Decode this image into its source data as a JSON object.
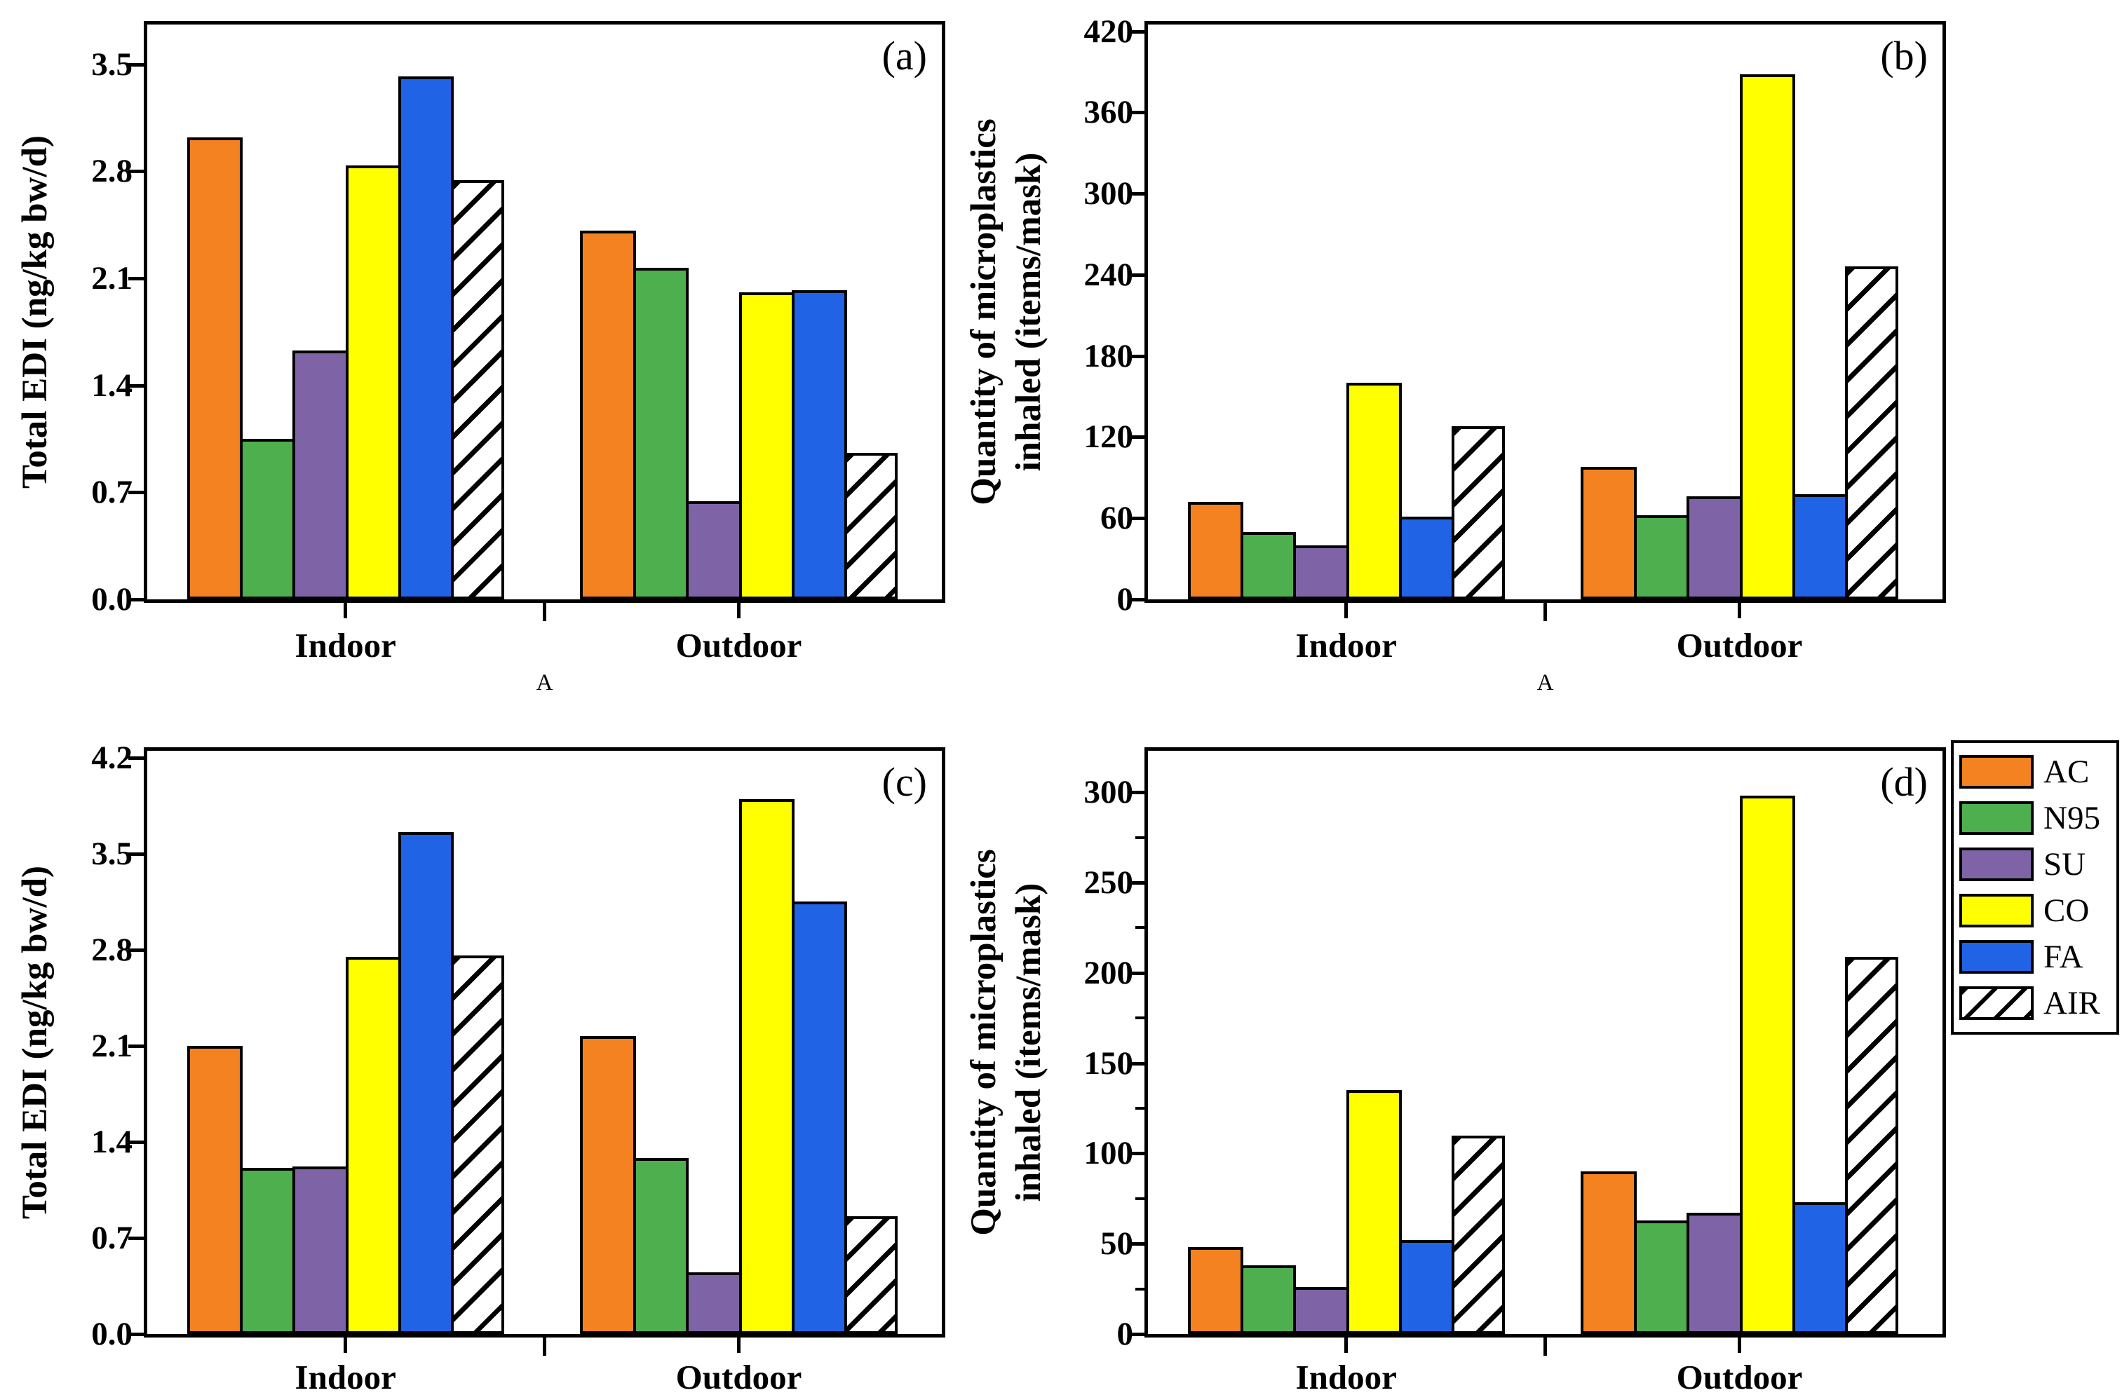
{
  "figure_background": "#FFFFFF",
  "colors": {
    "AC": "#F58220",
    "N95": "#4DAF4E",
    "SU": "#7E64A6",
    "CO": "#FFFF00",
    "FA": "#2063E5",
    "AIR": "#FFFFFF",
    "outline": "#000000"
  },
  "legend": {
    "position": "right",
    "items": [
      {
        "label": "AC",
        "hatch": false
      },
      {
        "label": "N95",
        "hatch": false
      },
      {
        "label": "SU",
        "hatch": false
      },
      {
        "label": "CO",
        "hatch": false
      },
      {
        "label": "FA",
        "hatch": false
      },
      {
        "label": "AIR",
        "hatch": true
      }
    ]
  },
  "chart_data": [
    {
      "type": "bar",
      "panel_label": "(a)",
      "position": "top-left",
      "ylabel_lines": [
        "Total EDI (ng/kg bw/d)"
      ],
      "xlabel": "A",
      "categories": [
        "Indoor",
        "Outdoor"
      ],
      "yticks": [
        0.0,
        0.7,
        1.4,
        2.1,
        2.8,
        3.5
      ],
      "ytick_labels": [
        "0.0",
        "0.7",
        "1.4",
        "2.1",
        "2.8",
        "3.5"
      ],
      "minor_yticks": [],
      "ylim": [
        0,
        3.76
      ],
      "grid": false,
      "series": [
        {
          "name": "AC",
          "values": [
            3.02,
            2.41
          ],
          "hatch": false
        },
        {
          "name": "N95",
          "values": [
            1.05,
            2.17
          ],
          "hatch": false
        },
        {
          "name": "SU",
          "values": [
            1.63,
            0.64
          ],
          "hatch": false
        },
        {
          "name": "CO",
          "values": [
            2.84,
            2.01
          ],
          "hatch": false
        },
        {
          "name": "FA",
          "values": [
            3.42,
            2.02
          ],
          "hatch": false
        },
        {
          "name": "AIR",
          "values": [
            2.74,
            0.96
          ],
          "hatch": true
        }
      ]
    },
    {
      "type": "bar",
      "panel_label": "(b)",
      "position": "top-right",
      "ylabel_lines": [
        "Quantity of microplastics",
        "inhaled (items/mask)"
      ],
      "xlabel": "A",
      "categories": [
        "Indoor",
        "Outdoor"
      ],
      "yticks": [
        0,
        60,
        120,
        180,
        240,
        300,
        360,
        420
      ],
      "ytick_labels": [
        "0",
        "60",
        "120",
        "180",
        "240",
        "300",
        "360",
        "420"
      ],
      "minor_yticks": [],
      "ylim": [
        0,
        425
      ],
      "grid": false,
      "series": [
        {
          "name": "AC",
          "values": [
            72,
            98
          ],
          "hatch": false
        },
        {
          "name": "N95",
          "values": [
            50,
            62
          ],
          "hatch": false
        },
        {
          "name": "SU",
          "values": [
            40,
            76
          ],
          "hatch": false
        },
        {
          "name": "CO",
          "values": [
            160,
            388
          ],
          "hatch": false
        },
        {
          "name": "FA",
          "values": [
            61,
            78
          ],
          "hatch": false
        },
        {
          "name": "AIR",
          "values": [
            128,
            246
          ],
          "hatch": true
        }
      ]
    },
    {
      "type": "bar",
      "panel_label": "(c)",
      "position": "bottom-left",
      "ylabel_lines": [
        "Total EDI (ng/kg bw/d)"
      ],
      "xlabel": "",
      "categories": [
        "Indoor",
        "Outdoor"
      ],
      "yticks": [
        0.0,
        0.7,
        1.4,
        2.1,
        2.8,
        3.5,
        4.2
      ],
      "ytick_labels": [
        "0.0",
        "0.7",
        "1.4",
        "2.1",
        "2.8",
        "3.5",
        "4.2"
      ],
      "minor_yticks": [],
      "ylim": [
        0,
        4.25
      ],
      "grid": false,
      "series": [
        {
          "name": "AC",
          "values": [
            2.1,
            2.17
          ],
          "hatch": false
        },
        {
          "name": "N95",
          "values": [
            1.21,
            1.28
          ],
          "hatch": false
        },
        {
          "name": "SU",
          "values": [
            1.22,
            0.45
          ],
          "hatch": false
        },
        {
          "name": "CO",
          "values": [
            2.75,
            3.9
          ],
          "hatch": false
        },
        {
          "name": "FA",
          "values": [
            3.66,
            3.15
          ],
          "hatch": false
        },
        {
          "name": "AIR",
          "values": [
            2.76,
            0.86
          ],
          "hatch": true
        }
      ]
    },
    {
      "type": "bar",
      "panel_label": "(d)",
      "position": "bottom-right",
      "ylabel_lines": [
        "Quantity of microplastics",
        "inhaled (items/mask)"
      ],
      "xlabel": "",
      "categories": [
        "Indoor",
        "Outdoor"
      ],
      "yticks": [
        0,
        50,
        100,
        150,
        200,
        250,
        300
      ],
      "ytick_labels": [
        "0",
        "50",
        "100",
        "150",
        "200",
        "250",
        "300"
      ],
      "minor_yticks": [
        25,
        75,
        125,
        175,
        225,
        275
      ],
      "ylim": [
        0,
        323
      ],
      "grid": false,
      "series": [
        {
          "name": "AC",
          "values": [
            48,
            90
          ],
          "hatch": false
        },
        {
          "name": "N95",
          "values": [
            38,
            63
          ],
          "hatch": false
        },
        {
          "name": "SU",
          "values": [
            26,
            67
          ],
          "hatch": false
        },
        {
          "name": "CO",
          "values": [
            135,
            298
          ],
          "hatch": false
        },
        {
          "name": "FA",
          "values": [
            52,
            73
          ],
          "hatch": false
        },
        {
          "name": "AIR",
          "values": [
            110,
            209
          ],
          "hatch": true
        }
      ]
    }
  ]
}
